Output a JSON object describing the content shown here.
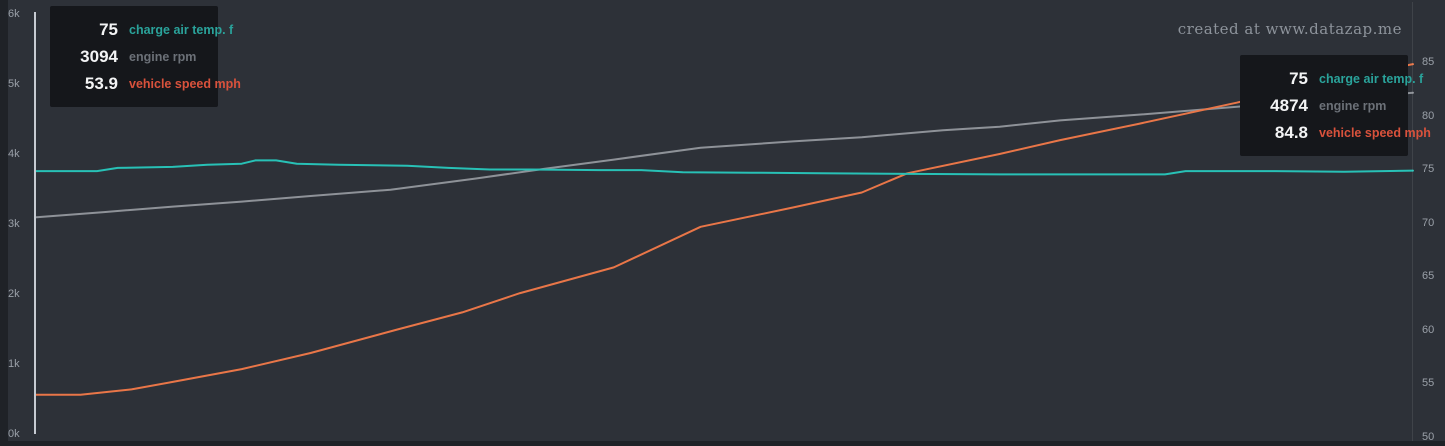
{
  "watermark": "created at www.datazap.me",
  "colors": {
    "panel_bg": "#2d3138",
    "outer_bg": "#1f2227",
    "axis_line": "#c6cbd2",
    "tick_text": "#9aa0a8",
    "watermark_text": "#8d939b",
    "tooltip_bg": "#15171b",
    "tooltip_value": "#f3f4f5",
    "charge_air_line": "#28c1b6",
    "engine_rpm_line": "#8e9298",
    "vehicle_speed_line": "#e97648",
    "charge_air_label": "#2aa39b",
    "engine_rpm_label": "#6c7178",
    "vehicle_speed_label": "#d9523c"
  },
  "left_axis": {
    "ticks": [
      "6k",
      "5k",
      "4k",
      "3k",
      "2k",
      "1k",
      "0k"
    ]
  },
  "right_axis": {
    "ticks": [
      "85",
      "80",
      "75",
      "70",
      "65",
      "60",
      "55",
      "50"
    ]
  },
  "tooltips": {
    "start": {
      "rows": [
        {
          "value": "75",
          "label": "charge air temp. f"
        },
        {
          "value": "3094",
          "label": "engine rpm"
        },
        {
          "value": "53.9",
          "label": "vehicle speed mph"
        }
      ]
    },
    "end": {
      "rows": [
        {
          "value": "75",
          "label": "charge air temp. f"
        },
        {
          "value": "4874",
          "label": "engine rpm"
        },
        {
          "value": "84.8",
          "label": "vehicle speed mph"
        }
      ]
    }
  },
  "chart_data": {
    "type": "line",
    "title": "",
    "x_axis_visible": false,
    "grid": false,
    "left_axis": {
      "range": [
        0,
        6000
      ],
      "tick_step": 1000,
      "tick_format": "k",
      "series": "engine rpm"
    },
    "right_axis": {
      "range": [
        50,
        85
      ],
      "tick_step": 5,
      "series": [
        "charge air temp. f",
        "vehicle speed mph"
      ]
    },
    "legend_position": "tooltips-on-hover",
    "series": [
      {
        "name": "engine rpm",
        "axis": "left",
        "color": "#8e9298",
        "start_value": 3094,
        "end_value": 4874,
        "points": [
          [
            0,
            3094
          ],
          [
            0.05,
            3170
          ],
          [
            0.1,
            3248
          ],
          [
            0.15,
            3320
          ],
          [
            0.2,
            3400
          ],
          [
            0.258,
            3490
          ],
          [
            0.32,
            3650
          ],
          [
            0.37,
            3790
          ],
          [
            0.42,
            3920
          ],
          [
            0.483,
            4090
          ],
          [
            0.55,
            4180
          ],
          [
            0.6,
            4240
          ],
          [
            0.659,
            4340
          ],
          [
            0.7,
            4390
          ],
          [
            0.744,
            4480
          ],
          [
            0.8,
            4560
          ],
          [
            0.85,
            4640
          ],
          [
            0.9,
            4720
          ],
          [
            0.95,
            4800
          ],
          [
            1,
            4874
          ]
        ]
      },
      {
        "name": "vehicle speed mph",
        "axis": "right",
        "color": "#e97648",
        "start_value": 53.9,
        "end_value": 84.8,
        "points": [
          [
            0,
            53.9
          ],
          [
            0.033,
            53.9
          ],
          [
            0.07,
            54.4
          ],
          [
            0.1,
            55.1
          ],
          [
            0.15,
            56.3
          ],
          [
            0.2,
            57.8
          ],
          [
            0.263,
            60.0
          ],
          [
            0.31,
            61.6
          ],
          [
            0.352,
            63.4
          ],
          [
            0.42,
            65.8
          ],
          [
            0.483,
            69.6
          ],
          [
            0.55,
            71.4
          ],
          [
            0.6,
            72.8
          ],
          [
            0.633,
            74.6
          ],
          [
            0.7,
            76.4
          ],
          [
            0.744,
            77.7
          ],
          [
            0.8,
            79.2
          ],
          [
            0.872,
            81.2
          ],
          [
            0.92,
            82.7
          ],
          [
            0.96,
            83.8
          ],
          [
            1,
            84.8
          ]
        ]
      },
      {
        "name": "charge air temp. f",
        "axis": "right",
        "color": "#28c1b6",
        "start_value": 75,
        "end_value": 75,
        "points": [
          [
            0,
            74.8
          ],
          [
            0.045,
            74.8
          ],
          [
            0.06,
            75.1
          ],
          [
            0.1,
            75.2
          ],
          [
            0.125,
            75.4
          ],
          [
            0.15,
            75.5
          ],
          [
            0.16,
            75.8
          ],
          [
            0.175,
            75.8
          ],
          [
            0.19,
            75.5
          ],
          [
            0.22,
            75.4
          ],
          [
            0.27,
            75.3
          ],
          [
            0.3,
            75.1
          ],
          [
            0.33,
            74.95
          ],
          [
            0.36,
            74.95
          ],
          [
            0.41,
            74.9
          ],
          [
            0.44,
            74.9
          ],
          [
            0.47,
            74.7
          ],
          [
            0.52,
            74.65
          ],
          [
            0.57,
            74.6
          ],
          [
            0.62,
            74.55
          ],
          [
            0.7,
            74.5
          ],
          [
            0.78,
            74.5
          ],
          [
            0.82,
            74.5
          ],
          [
            0.835,
            74.8
          ],
          [
            0.9,
            74.8
          ],
          [
            0.95,
            74.75
          ],
          [
            1,
            74.85
          ]
        ]
      }
    ]
  }
}
